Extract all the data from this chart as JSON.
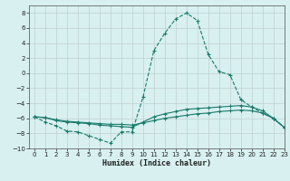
{
  "xlabel": "Humidex (Indice chaleur)",
  "x": [
    0,
    1,
    2,
    3,
    4,
    5,
    6,
    7,
    8,
    9,
    10,
    11,
    12,
    13,
    14,
    15,
    16,
    17,
    18,
    19,
    20,
    21,
    22,
    23
  ],
  "line1": [
    -5.8,
    -6.5,
    -7.0,
    -7.7,
    -7.8,
    -8.3,
    -8.8,
    -9.3,
    -7.8,
    -7.8,
    -3.2,
    3.0,
    5.3,
    7.2,
    8.0,
    7.0,
    2.5,
    0.2,
    -0.2,
    -3.5,
    -4.5,
    -5.3,
    -6.0,
    -7.2
  ],
  "line2": [
    -5.8,
    -5.9,
    -6.3,
    -6.5,
    -6.6,
    -6.7,
    -6.9,
    -7.0,
    -7.1,
    -7.2,
    -6.5,
    -5.8,
    -5.4,
    -5.1,
    -4.8,
    -4.7,
    -4.6,
    -4.5,
    -4.4,
    -4.3,
    -4.5,
    -5.0,
    -6.0,
    -7.2
  ],
  "line3": [
    -5.8,
    -5.9,
    -6.2,
    -6.4,
    -6.5,
    -6.6,
    -6.7,
    -6.8,
    -6.8,
    -6.9,
    -6.6,
    -6.3,
    -6.0,
    -5.8,
    -5.6,
    -5.4,
    -5.3,
    -5.1,
    -5.0,
    -4.9,
    -5.0,
    -5.3,
    -6.0,
    -7.2
  ],
  "line_color": "#1a7a6a",
  "bg_color": "#d8f0f0",
  "grid_color": "#c0d0d0",
  "ylim": [
    -10,
    9
  ],
  "xlim": [
    -0.5,
    23
  ],
  "yticks": [
    -10,
    -8,
    -6,
    -4,
    -2,
    0,
    2,
    4,
    6,
    8
  ],
  "xticks": [
    0,
    1,
    2,
    3,
    4,
    5,
    6,
    7,
    8,
    9,
    10,
    11,
    12,
    13,
    14,
    15,
    16,
    17,
    18,
    19,
    20,
    21,
    22,
    23
  ],
  "xlabel_fontsize": 6.0,
  "tick_fontsize": 5.0
}
